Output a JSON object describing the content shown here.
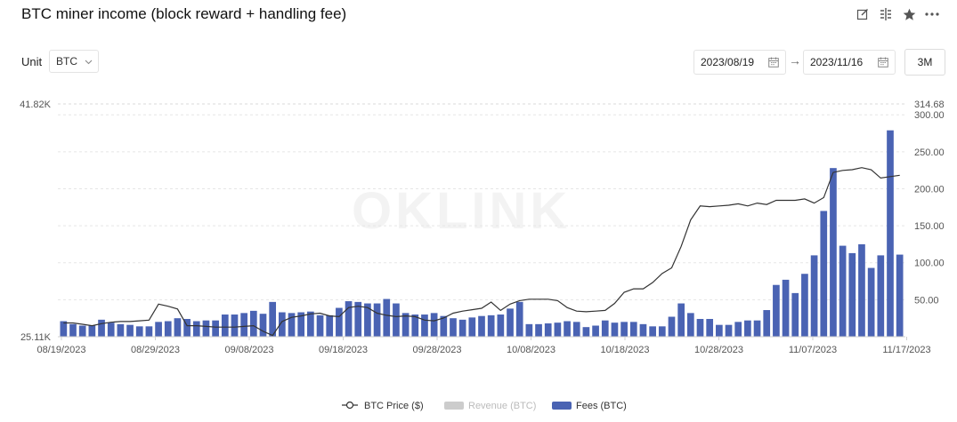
{
  "header": {
    "title": "BTC miner income (block reward + handling fee)"
  },
  "controls": {
    "unit_label": "Unit",
    "unit_value": "BTC",
    "start_date": "2023/08/19",
    "end_date": "2023/11/16",
    "range_label": "3M"
  },
  "icons": [
    "edit-icon",
    "compare-icon",
    "star-icon",
    "more-icon"
  ],
  "watermark": "OKLINK",
  "colors": {
    "bars": "#4a63b3",
    "price_line": "#333333",
    "revenue_legend": "#cccccc",
    "grid": "#e5e5e5"
  },
  "chart_data": {
    "type": "bar",
    "left_axis": {
      "min_label": "25.11K",
      "max_label": "41.82K",
      "min": 25110,
      "max": 41820
    },
    "right_axis": {
      "ticks": [
        50,
        100,
        150,
        200,
        250,
        300
      ],
      "tick_labels": [
        "50.00",
        "100.00",
        "150.00",
        "200.00",
        "250.00",
        "300.00"
      ],
      "max_label": "314.68",
      "max": 314.68
    },
    "x_tick_labels": [
      "08/19/2023",
      "08/29/2023",
      "09/08/2023",
      "09/18/2023",
      "09/28/2023",
      "10/08/2023",
      "10/18/2023",
      "10/28/2023",
      "11/07/2023",
      "11/17/2023"
    ],
    "series": [
      {
        "name": "Fees (BTC)",
        "type": "bar",
        "axis": "right",
        "values": [
          21,
          17,
          15,
          15,
          23,
          19,
          17,
          16,
          14,
          14,
          20,
          21,
          25,
          24,
          21,
          22,
          22,
          30,
          30,
          32,
          35,
          31,
          47,
          33,
          32,
          33,
          34,
          29,
          29,
          39,
          48,
          47,
          45,
          45,
          51,
          45,
          32,
          30,
          30,
          32,
          28,
          25,
          23,
          26,
          28,
          29,
          30,
          38,
          47,
          17,
          17,
          18,
          19,
          21,
          20,
          13,
          15,
          22,
          19,
          20,
          20,
          17,
          14,
          14,
          27,
          45,
          32,
          24,
          24,
          16,
          16,
          20,
          22,
          22,
          36,
          70,
          77,
          59,
          85,
          110,
          170,
          228,
          123,
          113,
          125,
          93,
          110,
          279,
          111
        ]
      },
      {
        "name": "BTC Price ($)",
        "type": "line",
        "axis": "left",
        "values": [
          26100,
          26100,
          26000,
          25900,
          26050,
          26150,
          26200,
          26200,
          26250,
          26300,
          27450,
          27300,
          27100,
          25900,
          25900,
          25850,
          25800,
          25800,
          25800,
          25850,
          25900,
          25500,
          25200,
          26200,
          26500,
          26600,
          26750,
          26800,
          26600,
          26550,
          27200,
          27300,
          27200,
          26800,
          26650,
          26550,
          26600,
          26550,
          26300,
          26250,
          26450,
          26800,
          26950,
          27050,
          27150,
          27600,
          27000,
          27450,
          27700,
          27800,
          27800,
          27800,
          27700,
          27200,
          26950,
          26900,
          26950,
          27000,
          27500,
          28300,
          28550,
          28550,
          29000,
          29650,
          30050,
          31600,
          33500,
          34500,
          34450,
          34500,
          34550,
          34650,
          34500,
          34700,
          34600,
          34900,
          34900,
          34900,
          35000,
          34700,
          35100,
          36900,
          37050,
          37100,
          37250,
          37100,
          36500,
          36600,
          36700
        ]
      },
      {
        "name": "Revenue (BTC)",
        "type": "bar",
        "visible": false,
        "values": []
      }
    ],
    "legend": [
      "BTC Price ($)",
      "Revenue (BTC)",
      "Fees (BTC)"
    ],
    "legend_position": "bottom-center",
    "grid": true
  }
}
